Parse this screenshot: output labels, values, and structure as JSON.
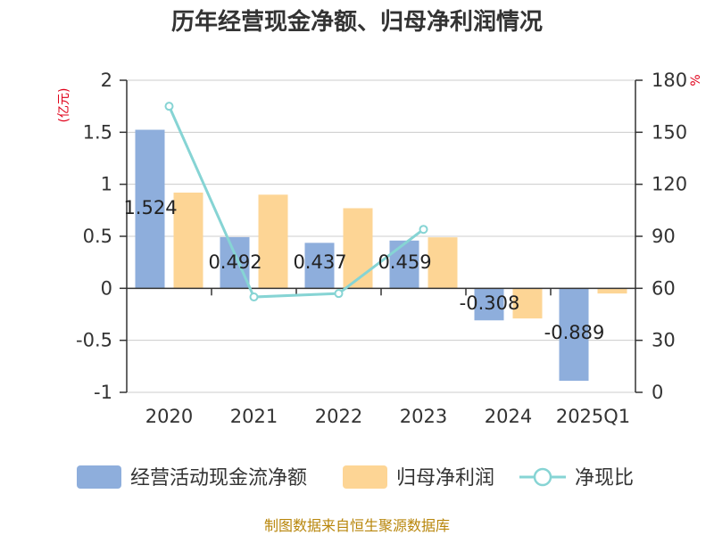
{
  "title": "历年经营现金净额、归母净利润情况",
  "source": "制图数据来自恒生聚源数据库",
  "colors": {
    "bar1": "#8eaedc",
    "bar2": "#fdd595",
    "line": "#86d4d4",
    "axis": "#333333",
    "grid": "#cccccc",
    "unit": "#e0001a"
  },
  "chart_data": {
    "type": "bar",
    "categories": [
      "2020",
      "2021",
      "2022",
      "2023",
      "2024",
      "2025Q1"
    ],
    "left_axis": {
      "unit": "(亿元)",
      "ylim": [
        -1,
        2
      ],
      "ticks": [
        "2",
        "1.5",
        "1",
        "0.5",
        "0",
        "-0.5",
        "-1"
      ]
    },
    "right_axis": {
      "unit": "%",
      "ylim": [
        0,
        180
      ],
      "ticks": [
        "180",
        "150",
        "120",
        "90",
        "60",
        "30",
        "0"
      ]
    },
    "series": [
      {
        "name": "经营活动现金流净额",
        "type": "bar",
        "axis": "left",
        "values": [
          1.524,
          0.492,
          0.437,
          0.459,
          -0.308,
          -0.889
        ],
        "labels": [
          "1.524",
          "0.492",
          "0.437",
          "0.459",
          "-0.308",
          "-0.889"
        ]
      },
      {
        "name": "归母净利润",
        "type": "bar",
        "axis": "left",
        "values": [
          0.92,
          0.9,
          0.77,
          0.49,
          -0.29,
          -0.05
        ]
      },
      {
        "name": "净现比",
        "type": "line",
        "axis": "right",
        "values": [
          165,
          55,
          57,
          94,
          null,
          null
        ]
      }
    ],
    "legend_position": "bottom",
    "grid": true
  }
}
